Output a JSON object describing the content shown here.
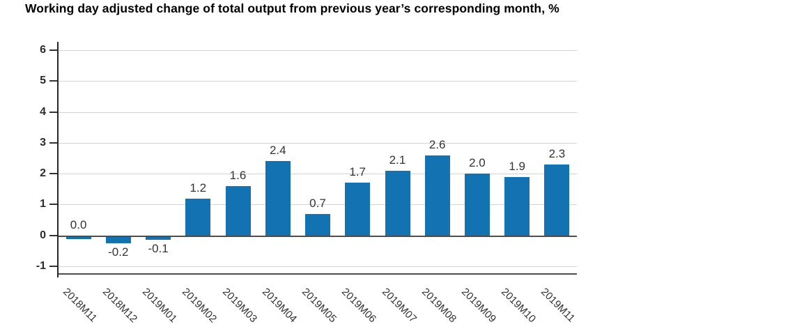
{
  "title": "Working day adjusted change of total output from previous year’s corresponding month, %",
  "chart_data": {
    "type": "bar",
    "title": "Working day adjusted change of total output from previous year’s corresponding month, %",
    "categories": [
      "2018M11",
      "2018M12",
      "2019M01",
      "2019M02",
      "2019M03",
      "2019M04",
      "2019M05",
      "2019M06",
      "2019M07",
      "2019M08",
      "2019M09",
      "2019M10",
      "2019M11"
    ],
    "values": [
      0.0,
      -0.2,
      -0.1,
      1.2,
      1.6,
      2.4,
      0.7,
      1.7,
      2.1,
      2.6,
      2.0,
      1.9,
      2.3
    ],
    "data_labels": [
      "0.0",
      "-0.2",
      "-0.1",
      "1.2",
      "1.6",
      "2.4",
      "0.7",
      "1.7",
      "2.1",
      "2.6",
      "2.0",
      "1.9",
      "2.3"
    ],
    "xlabel": "",
    "ylabel": "",
    "yticks": [
      6,
      5,
      4,
      3,
      2,
      1,
      0,
      -1
    ],
    "ylim": [
      -1.27,
      6.27
    ],
    "grid": true,
    "legend_position": "none",
    "bar_color": "#1272b2",
    "gridline_color": "#d2d2d2",
    "zero_line_color": "#4d4d4d",
    "axis_color": "#262626",
    "label_color": "#333333"
  }
}
